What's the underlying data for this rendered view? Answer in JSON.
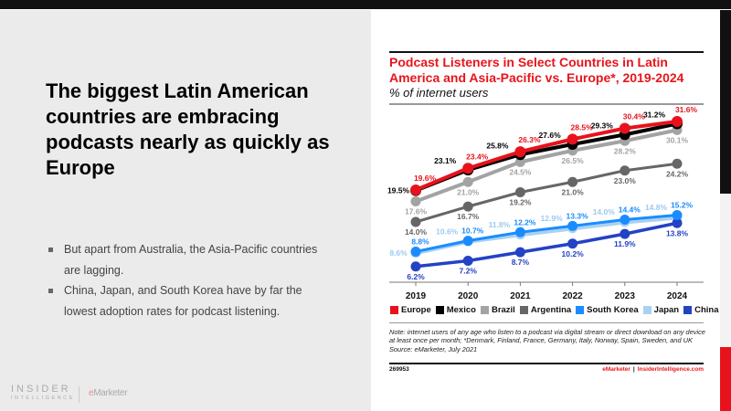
{
  "slide": {
    "headline": "The biggest Latin American countries are embracing podcasts nearly as quickly as Europe",
    "bullets": [
      "But apart from Australia, the Asia-Pacific countries are lagging.",
      "China, Japan, and South Korea have by far the lowest adoption rates for podcast listening."
    ],
    "logo": {
      "insider": "INSIDER",
      "intelligence": "INTELLIGENCE",
      "emarketer_e": "e",
      "emarketer_rest": "Marketer"
    }
  },
  "chart_data": {
    "type": "line",
    "title": "Podcast Listeners in Select Countries in Latin America and Asia-Pacific vs. Europe*, 2019-2024",
    "subtitle": "% of internet users",
    "x": [
      "2019",
      "2020",
      "2021",
      "2022",
      "2023",
      "2024"
    ],
    "ylim": [
      3.5,
      33
    ],
    "grid": false,
    "legend_position": "bottom",
    "series": [
      {
        "name": "Europe",
        "color": "#e8121c",
        "values": [
          19.6,
          23.4,
          26.3,
          28.5,
          30.4,
          31.6
        ],
        "labels": [
          "19.6%",
          "23.4%",
          "26.3%",
          "28.5%",
          "30.4%",
          "31.6%"
        ]
      },
      {
        "name": "Mexico",
        "color": "#000000",
        "values": [
          19.5,
          23.1,
          25.8,
          27.6,
          29.3,
          31.2
        ],
        "labels": [
          "19.5%",
          "23.1%",
          "25.8%",
          "27.6%",
          "29.3%",
          "31.2%"
        ]
      },
      {
        "name": "Brazil",
        "color": "#a3a3a3",
        "values": [
          17.6,
          21.0,
          24.5,
          26.5,
          28.2,
          30.1
        ],
        "labels": [
          "17.6%",
          "21.0%",
          "24.5%",
          "26.5%",
          "28.2%",
          "30.1%"
        ]
      },
      {
        "name": "Argentina",
        "color": "#666666",
        "values": [
          14.0,
          16.7,
          19.2,
          21.0,
          23.0,
          24.2
        ],
        "labels": [
          "14.0%",
          "16.7%",
          "19.2%",
          "21.0%",
          "23.0%",
          "24.2%"
        ]
      },
      {
        "name": "South Korea",
        "color": "#1a8cff",
        "values": [
          8.8,
          10.7,
          12.2,
          13.3,
          14.4,
          15.2
        ],
        "labels": [
          "8.8%",
          "10.7%",
          "12.2%",
          "13.3%",
          "14.4%",
          "15.2%"
        ]
      },
      {
        "name": "Japan",
        "color": "#a9d2f2",
        "values": [
          8.6,
          10.6,
          11.8,
          12.9,
          14.0,
          14.8
        ],
        "labels": [
          "8.6%",
          "10.6%",
          "11.8%",
          "12.9%",
          "14.0%",
          "14.8%"
        ]
      },
      {
        "name": "China",
        "color": "#2342c4",
        "values": [
          6.2,
          7.2,
          8.7,
          10.2,
          11.9,
          13.8
        ],
        "labels": [
          "6.2%",
          "7.2%",
          "8.7%",
          "10.2%",
          "11.9%",
          "13.8%"
        ]
      }
    ],
    "note": "Note: internet users of any age who listen to a podcast via digital stream or direct download on any device at least once per month; *Denmark, Finland, France, Germany, Italy, Norway, Spain, Sweden, and UK",
    "source": "Source: eMarketer, July 2021",
    "chart_id": "269953",
    "footer_brand": "eMarketer",
    "footer_sep": "|",
    "footer_site": "InsiderIntelligence.com"
  }
}
